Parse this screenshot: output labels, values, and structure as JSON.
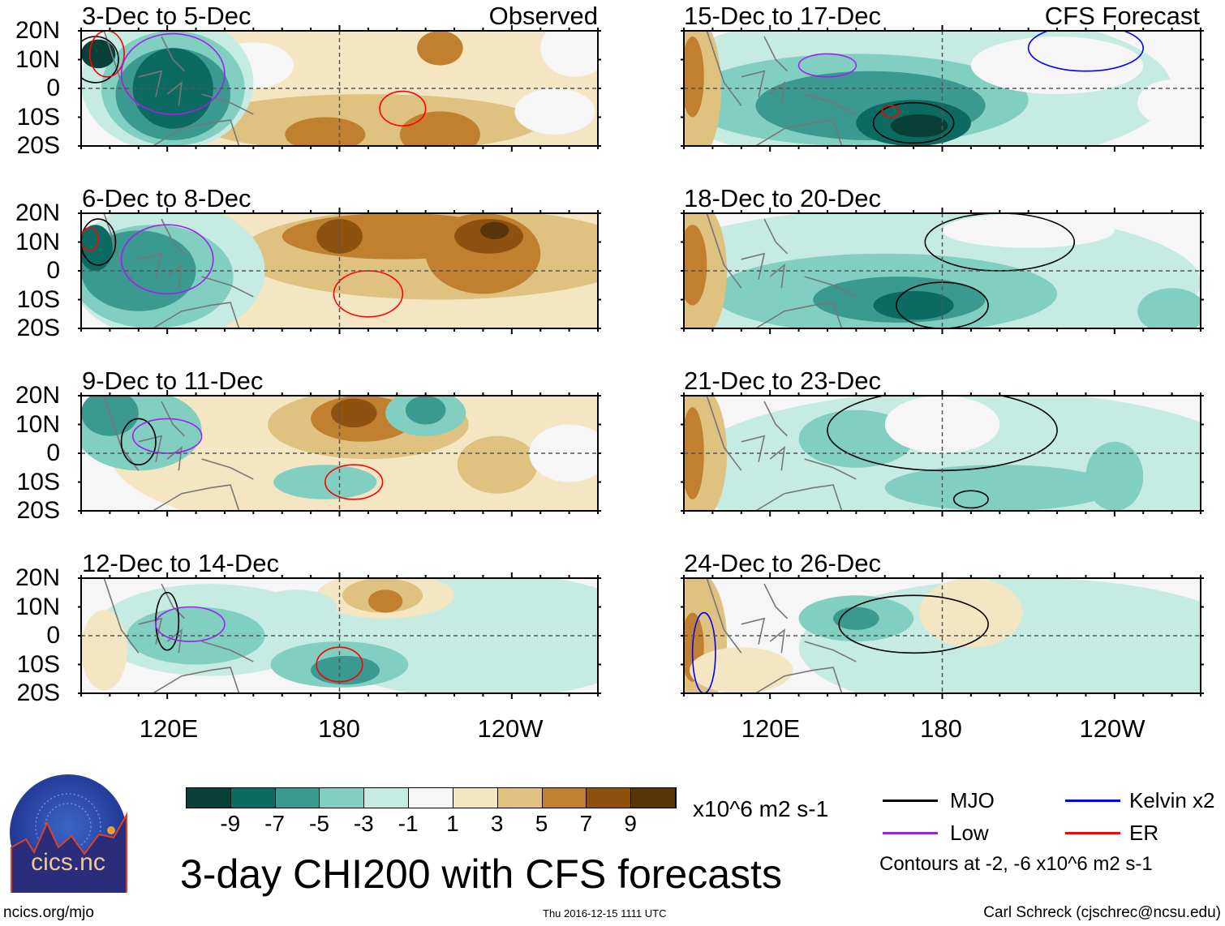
{
  "panels_left": [
    {
      "title": "3-Dec to 5-Dec",
      "tag": "Observed"
    },
    {
      "title": "6-Dec to 8-Dec"
    },
    {
      "title": "9-Dec to 11-Dec"
    },
    {
      "title": "12-Dec to 14-Dec"
    }
  ],
  "panels_right": [
    {
      "title": "15-Dec to 17-Dec",
      "tag": "CFS Forecast"
    },
    {
      "title": "18-Dec to 20-Dec"
    },
    {
      "title": "21-Dec to 23-Dec"
    },
    {
      "title": "24-Dec to 26-Dec"
    }
  ],
  "lat_labels": [
    "20N",
    "10N",
    "0",
    "10S",
    "20S"
  ],
  "lon_labels": [
    "120E",
    "180",
    "120W"
  ],
  "colorbar": {
    "colors": [
      "#083f37",
      "#0b6a61",
      "#3a9990",
      "#80cfc1",
      "#c6ebe3",
      "#f6f6f6",
      "#f5e6c3",
      "#dfc180",
      "#c0802f",
      "#8d5210",
      "#573508"
    ],
    "labels": [
      "-9",
      "-7",
      "-5",
      "-3",
      "-1",
      "1",
      "3",
      "5",
      "7",
      "9"
    ],
    "units": "x10^6 m2 s-1"
  },
  "legend": {
    "items": [
      {
        "label": "MJO",
        "color": "#000000"
      },
      {
        "label": "Kelvin x2",
        "color": "#0000ff"
      },
      {
        "label": "Low",
        "color": "#a020f0"
      },
      {
        "label": "ER",
        "color": "#ff0000"
      }
    ],
    "note": "Contours at -2, -6 x10^6 m2 s-1"
  },
  "title": "3-day CHI200 with CFS forecasts",
  "logo_text": "cics.nc",
  "logo_ring_text": "Cooperative Institute for Climate and Satellites",
  "footer": {
    "left": "ncics.org/mjo",
    "center": "Thu 2016-12-15 1111 UTC",
    "right": "Carl Schreck (cjschrec@ncsu.edu)"
  }
}
